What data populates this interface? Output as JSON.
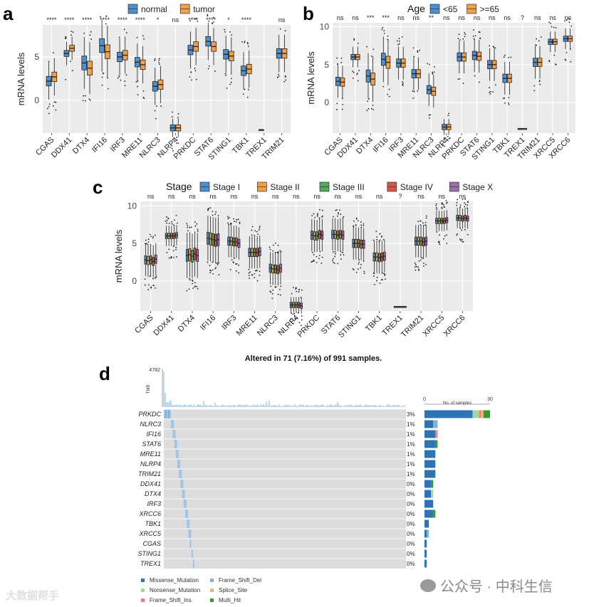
{
  "colors": {
    "normal": "#4f8fcb",
    "tumor": "#f0a04b",
    "lt65": "#4f8fcb",
    "ge65": "#f0a04b",
    "stage": [
      "#4f8fcb",
      "#f0a04b",
      "#55a85a",
      "#d9534f",
      "#9b6fa8"
    ],
    "panel_bg": "#ebebeb",
    "missense": "#2e74b5",
    "nonsense": "#a6d5a0",
    "frameshift_ins": "#f08080",
    "frameshift_del": "#7fb3d5",
    "splice": "#f6b26b",
    "multi": "#2c9e2c"
  },
  "chart_data": [
    {
      "panel_letter": "a",
      "type": "box",
      "legend": [
        "normal",
        "tumor"
      ],
      "ylabel": "mRNA levels",
      "yticks": [
        0,
        5
      ],
      "ylim": [
        -3.8,
        8.7
      ],
      "categories": [
        "CGAS",
        "DDX41",
        "DTX4",
        "IFI16",
        "IRF3",
        "MRE11",
        "NLRC3",
        "NLRP4",
        "PRKDC",
        "STAT6",
        "STING1",
        "TBK1",
        "TREX1",
        "TRIM21"
      ],
      "significance": [
        "****",
        "****",
        "****",
        "****",
        "****",
        "****",
        "*",
        "ns",
        "****",
        "****",
        "*",
        "****",
        "",
        "ns"
      ],
      "series": [
        {
          "name": "normal",
          "medians": [
            2.2,
            5.4,
            4.3,
            6.3,
            5.0,
            4.4,
            1.6,
            -3.2,
            5.8,
            6.8,
            5.3,
            3.4,
            -3.4,
            5.4
          ]
        },
        {
          "name": "tumor",
          "medians": [
            2.7,
            6.0,
            3.7,
            5.6,
            5.2,
            4.1,
            1.8,
            -3.2,
            6.2,
            6.2,
            5.1,
            3.6,
            null,
            5.4
          ]
        }
      ]
    },
    {
      "panel_letter": "b",
      "type": "box",
      "legend_title": "Age",
      "legend": [
        "<65",
        ">=65"
      ],
      "ylabel": "mRNA levels",
      "yticks": [
        0,
        5,
        10
      ],
      "ylim": [
        -4,
        10.5
      ],
      "categories": [
        "CGAS",
        "DDX41",
        "DTX4",
        "IFI16",
        "IRF3",
        "MRE11",
        "NLRC3",
        "NLRP4",
        "PRKDC",
        "STAT6",
        "STING1",
        "TBK1",
        "TREX1",
        "TRIM21",
        "XRCC5",
        "XRCC6"
      ],
      "significance": [
        "ns",
        "ns",
        "***",
        "***",
        "ns",
        "ns",
        "**",
        "ns",
        "ns",
        "ns",
        "ns",
        "ns",
        "?",
        "ns",
        "ns",
        "ns"
      ],
      "series": [
        {
          "name": "<65",
          "medians": [
            2.8,
            6.0,
            3.5,
            5.7,
            5.2,
            3.8,
            1.7,
            -3.2,
            6.0,
            6.2,
            5.0,
            3.2,
            -3.4,
            5.3,
            8.0,
            8.4
          ]
        },
        {
          "name": ">=65",
          "medians": [
            2.7,
            6.0,
            3.1,
            5.3,
            5.2,
            3.8,
            1.5,
            -3.2,
            6.0,
            6.1,
            5.0,
            3.2,
            -3.4,
            5.3,
            8.0,
            8.4
          ]
        }
      ]
    },
    {
      "panel_letter": "c",
      "type": "box",
      "legend_title": "Stage",
      "legend": [
        "Stage I",
        "Stage II",
        "Stage III",
        "Stage IV",
        "Stage X"
      ],
      "ylabel": "mRNA levels",
      "yticks": [
        0,
        5,
        10
      ],
      "ylim": [
        -4,
        10.6
      ],
      "categories": [
        "CGAS",
        "DDX41",
        "DTX4",
        "IFI16",
        "IRF3",
        "MRE11",
        "NLRC3",
        "NLRP4",
        "PRKDC",
        "STAT6",
        "STING1",
        "TBK1",
        "TREX1",
        "TRIM21",
        "XRCC5",
        "XRCC6"
      ],
      "significance": [
        "ns",
        "ns",
        "ns",
        "ns",
        "ns",
        "ns",
        "ns",
        "ns",
        "ns",
        "ns",
        "ns",
        "ns",
        "?",
        "ns",
        "ns",
        "ns"
      ],
      "series_medians": [
        [
          2.8,
          6.0,
          3.4,
          5.7,
          5.3,
          3.8,
          1.7,
          -3.2,
          6.1,
          6.2,
          5.0,
          3.2,
          -3.4,
          5.3,
          8.0,
          8.4
        ],
        [
          2.7,
          6.0,
          3.5,
          5.6,
          5.3,
          3.8,
          1.6,
          -3.2,
          6.0,
          6.2,
          5.0,
          3.2,
          -3.4,
          5.3,
          8.0,
          8.4
        ],
        [
          2.8,
          6.0,
          3.3,
          5.5,
          5.2,
          3.8,
          1.6,
          -3.2,
          6.0,
          6.1,
          5.0,
          3.1,
          -3.4,
          5.3,
          8.0,
          8.3
        ],
        [
          2.6,
          6.0,
          3.6,
          5.4,
          5.2,
          3.8,
          1.5,
          -3.2,
          6.2,
          6.2,
          4.9,
          3.2,
          -3.4,
          5.2,
          8.0,
          8.4
        ],
        [
          2.9,
          6.1,
          3.4,
          5.5,
          5.0,
          3.9,
          1.7,
          -3.3,
          6.1,
          6.1,
          4.9,
          3.3,
          -3.4,
          5.3,
          8.1,
          8.3
        ]
      ]
    },
    {
      "panel_letter": "d",
      "type": "oncoplot",
      "title": "Altered in 71 (7.16%) of 991 samples.",
      "tmb_label": "TMB",
      "tmb_max": "4782",
      "bar_axis_title": "No. of samples",
      "bar_axis_ticks": [
        "0",
        "30"
      ],
      "bar_axis_max": 30,
      "genes": [
        "PRKDC",
        "NLRC3",
        "IFI16",
        "STAT6",
        "MRE11",
        "NLRP4",
        "TRIM21",
        "DDX41",
        "DTX4",
        "IRF3",
        "XRCC6",
        "TBK1",
        "XRCC5",
        "CGAS",
        "STING1",
        "TREX1"
      ],
      "percents": [
        "3%",
        "1%",
        "1%",
        "1%",
        "1%",
        "1%",
        "1%",
        "0%",
        "0%",
        "0%",
        "0%",
        "0%",
        "0%",
        "0%",
        "0%",
        "0%"
      ],
      "counts": [
        {
          "missense": 22,
          "nonsense": 3,
          "frameshift_ins": 1,
          "frameshift_del": 0,
          "splice": 1,
          "multi": 3
        },
        {
          "missense": 4,
          "frameshift_del": 2
        },
        {
          "missense": 5,
          "frameshift_ins": 1
        },
        {
          "missense": 5,
          "multi": 1
        },
        {
          "missense": 5
        },
        {
          "missense": 5
        },
        {
          "missense": 5
        },
        {
          "missense": 3,
          "multi": 1
        },
        {
          "missense": 3,
          "nonsense": 1
        },
        {
          "missense": 4
        },
        {
          "missense": 4,
          "multi": 1
        },
        {
          "missense": 2
        },
        {
          "missense": 1,
          "frameshift_del": 1
        },
        {
          "missense": 1
        },
        {
          "missense": 1
        },
        {
          "missense": 1
        }
      ],
      "legend_items": [
        "Missense_Mutation",
        "Nonsense_Mutation",
        "Frame_Shift_Ins",
        "Frame_Shift_Del",
        "Splice_Site",
        "Multi_Hit"
      ]
    }
  ],
  "watermark": {
    "left_text": "大数据帮手",
    "right_text": "公众号 · 中科生信"
  }
}
